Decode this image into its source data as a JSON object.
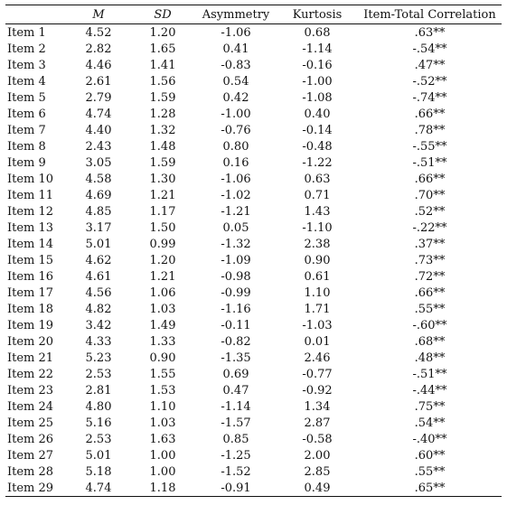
{
  "headers": [
    "",
    "M",
    "SD",
    "Asymmetry",
    "Kurtosis",
    "Item-Total Correlation"
  ],
  "rows": [
    [
      "Item 1",
      "4.52",
      "1.20",
      "-1.06",
      "0.68",
      ".63**"
    ],
    [
      "Item 2",
      "2.82",
      "1.65",
      "0.41",
      "-1.14",
      "-.54**"
    ],
    [
      "Item 3",
      "4.46",
      "1.41",
      "-0.83",
      "-0.16",
      ".47**"
    ],
    [
      "Item 4",
      "2.61",
      "1.56",
      "0.54",
      "-1.00",
      "-.52**"
    ],
    [
      "Item 5",
      "2.79",
      "1.59",
      "0.42",
      "-1.08",
      "-.74**"
    ],
    [
      "Item 6",
      "4.74",
      "1.28",
      "-1.00",
      "0.40",
      ".66**"
    ],
    [
      "Item 7",
      "4.40",
      "1.32",
      "-0.76",
      "-0.14",
      ".78**"
    ],
    [
      "Item 8",
      "2.43",
      "1.48",
      "0.80",
      "-0.48",
      "-.55**"
    ],
    [
      "Item 9",
      "3.05",
      "1.59",
      "0.16",
      "-1.22",
      "-.51**"
    ],
    [
      "Item 10",
      "4.58",
      "1.30",
      "-1.06",
      "0.63",
      ".66**"
    ],
    [
      "Item 11",
      "4.69",
      "1.21",
      "-1.02",
      "0.71",
      ".70**"
    ],
    [
      "Item 12",
      "4.85",
      "1.17",
      "-1.21",
      "1.43",
      ".52**"
    ],
    [
      "Item 13",
      "3.17",
      "1.50",
      "0.05",
      "-1.10",
      "-.22**"
    ],
    [
      "Item 14",
      "5.01",
      "0.99",
      "-1.32",
      "2.38",
      ".37**"
    ],
    [
      "Item 15",
      "4.62",
      "1.20",
      "-1.09",
      "0.90",
      ".73**"
    ],
    [
      "Item 16",
      "4.61",
      "1.21",
      "-0.98",
      "0.61",
      ".72**"
    ],
    [
      "Item 17",
      "4.56",
      "1.06",
      "-0.99",
      "1.10",
      ".66**"
    ],
    [
      "Item 18",
      "4.82",
      "1.03",
      "-1.16",
      "1.71",
      ".55**"
    ],
    [
      "Item 19",
      "3.42",
      "1.49",
      "-0.11",
      "-1.03",
      "-.60**"
    ],
    [
      "Item 20",
      "4.33",
      "1.33",
      "-0.82",
      "0.01",
      ".68**"
    ],
    [
      "Item 21",
      "5.23",
      "0.90",
      "-1.35",
      "2.46",
      ".48**"
    ],
    [
      "Item 22",
      "2.53",
      "1.55",
      "0.69",
      "-0.77",
      "-.51**"
    ],
    [
      "Item 23",
      "2.81",
      "1.53",
      "0.47",
      "-0.92",
      "-.44**"
    ],
    [
      "Item 24",
      "4.80",
      "1.10",
      "-1.14",
      "1.34",
      ".75**"
    ],
    [
      "Item 25",
      "5.16",
      "1.03",
      "-1.57",
      "2.87",
      ".54**"
    ],
    [
      "Item 26",
      "2.53",
      "1.63",
      "0.85",
      "-0.58",
      "-.40**"
    ],
    [
      "Item 27",
      "5.01",
      "1.00",
      "-1.25",
      "2.00",
      ".60**"
    ],
    [
      "Item 28",
      "5.18",
      "1.00",
      "-1.52",
      "2.85",
      ".55**"
    ],
    [
      "Item 29",
      "4.74",
      "1.18",
      "-0.91",
      "0.49",
      ".65**"
    ]
  ]
}
